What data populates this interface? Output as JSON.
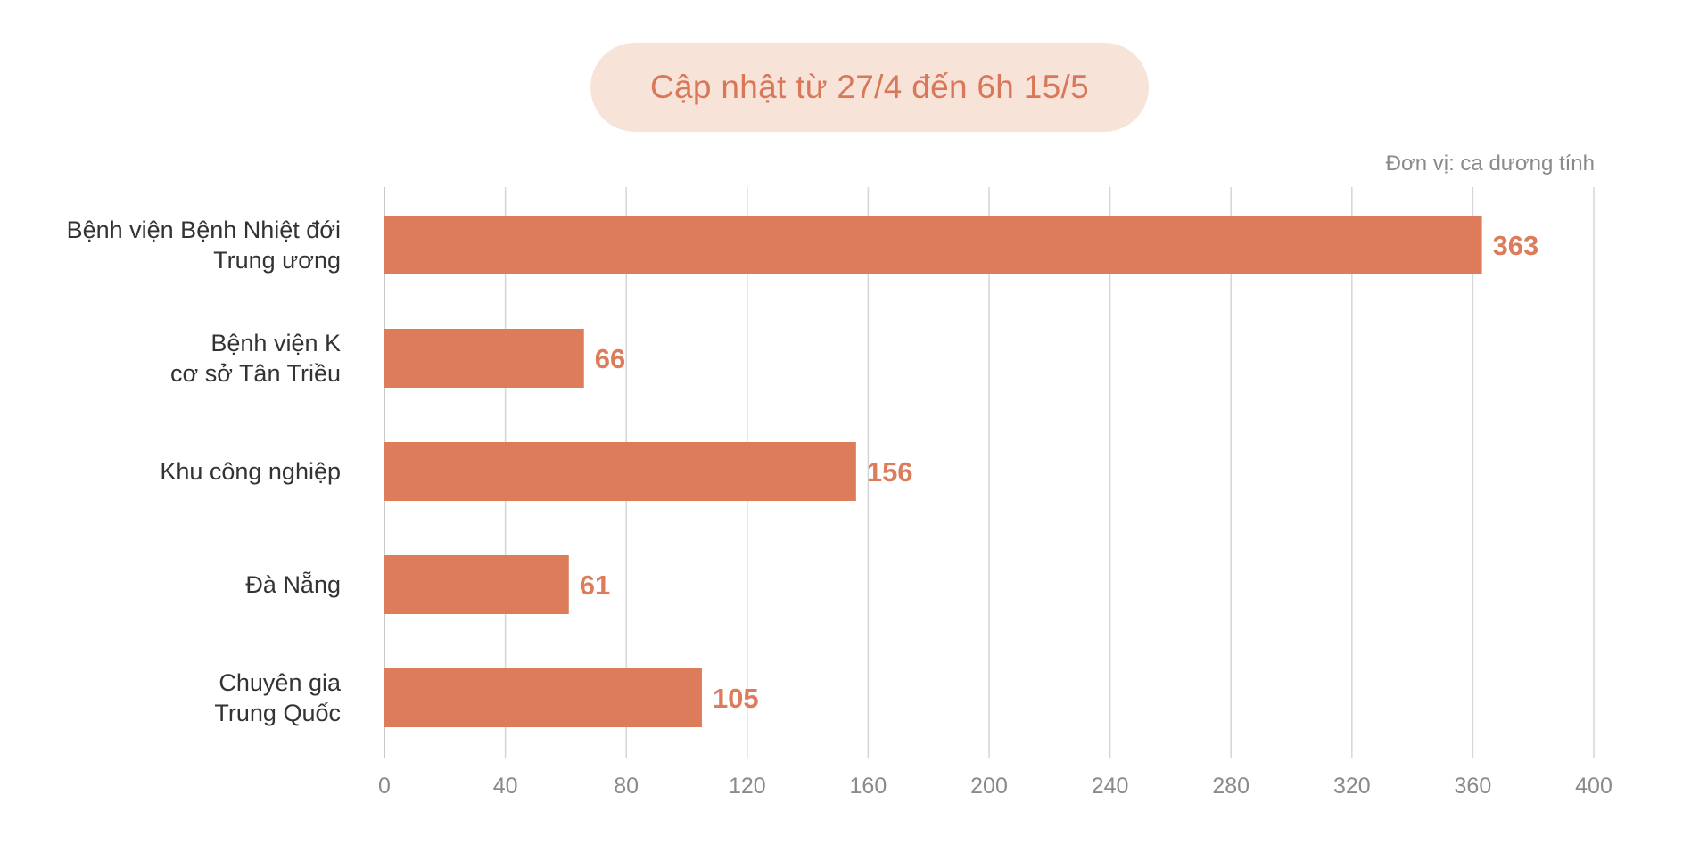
{
  "chart_data": {
    "type": "bar",
    "orientation": "horizontal",
    "title": "Cập nhật từ 27/4 đến 6h 15/5",
    "unit_label": "Đơn vị: ca dương tính",
    "categories": [
      [
        "Bệnh viện Bệnh Nhiệt đới",
        "Trung ương"
      ],
      [
        "Bệnh viện K",
        "cơ sở Tân Triều"
      ],
      [
        "Khu công nghiệp"
      ],
      [
        "Đà Nẵng"
      ],
      [
        "Chuyên gia",
        "Trung Quốc"
      ]
    ],
    "values": [
      363,
      66,
      156,
      61,
      105
    ],
    "xlim": [
      0,
      400
    ],
    "xticks": [
      0,
      40,
      80,
      120,
      160,
      200,
      240,
      280,
      320,
      360,
      400
    ],
    "grid": true,
    "colors": {
      "bar": "#dc7c5b",
      "value_label": "#dc7c5b",
      "title_text": "#d9775a",
      "title_bg": "#f8e3d8",
      "grid": "#d6d6d6",
      "tick_label": "#8a8a8a",
      "category_label": "#333333"
    }
  }
}
